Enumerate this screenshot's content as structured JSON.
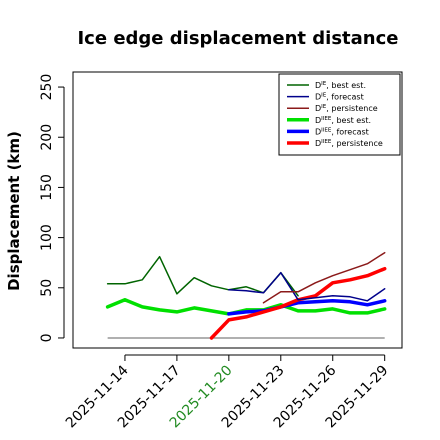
{
  "chart_data": {
    "type": "line",
    "title": "Ice edge displacement distance",
    "xlabel": "",
    "ylabel": "Displacement (km)",
    "ylim": [
      -10,
      265
    ],
    "xlim": [
      "2025-11-11",
      "2025-11-30"
    ],
    "yticks": [
      0,
      50,
      100,
      150,
      200,
      250
    ],
    "xticks": [
      {
        "date": "2025-11-14",
        "label": "2025-11-14",
        "color": "#000000"
      },
      {
        "date": "2025-11-17",
        "label": "2025-11-17",
        "color": "#000000"
      },
      {
        "date": "2025-11-20",
        "label": "2025-11-20",
        "color": "#228B22"
      },
      {
        "date": "2025-11-23",
        "label": "2025-11-23",
        "color": "#000000"
      },
      {
        "date": "2025-11-26",
        "label": "2025-11-26",
        "color": "#000000"
      },
      {
        "date": "2025-11-29",
        "label": "2025-11-29",
        "color": "#000000"
      }
    ],
    "grid": false,
    "legend_position": "top-right",
    "zero_line": {
      "from": "2025-11-13",
      "to": "2025-11-29",
      "value": 0,
      "color": "#808080"
    },
    "series": [
      {
        "name_main": "D",
        "name_sup": "IE",
        "name_rest": ", best est.",
        "color": "#006400",
        "width": 1.5,
        "points": [
          [
            "2025-11-13",
            54
          ],
          [
            "2025-11-14",
            54
          ],
          [
            "2025-11-15",
            58
          ],
          [
            "2025-11-16",
            81
          ],
          [
            "2025-11-17",
            44
          ],
          [
            "2025-11-18",
            60
          ],
          [
            "2025-11-19",
            52
          ],
          [
            "2025-11-20",
            48
          ],
          [
            "2025-11-21",
            51
          ],
          [
            "2025-11-22",
            45
          ],
          [
            "2025-11-23",
            65
          ],
          [
            "2025-11-24",
            42
          ]
        ]
      },
      {
        "name_main": "D",
        "name_sup": "IE",
        "name_rest": ", forecast",
        "color": "#00008B",
        "width": 1.5,
        "points": [
          [
            "2025-11-20",
            48
          ],
          [
            "2025-11-21",
            47
          ],
          [
            "2025-11-22",
            45
          ],
          [
            "2025-11-23",
            65
          ],
          [
            "2025-11-24",
            38
          ],
          [
            "2025-11-25",
            40
          ],
          [
            "2025-11-26",
            42
          ],
          [
            "2025-11-27",
            41
          ],
          [
            "2025-11-28",
            37
          ],
          [
            "2025-11-29",
            49
          ]
        ]
      },
      {
        "name_main": "D",
        "name_sup": "IE",
        "name_rest": ", persistence",
        "color": "#8B1A1A",
        "width": 1.5,
        "points": [
          [
            "2025-11-22",
            35
          ],
          [
            "2025-11-23",
            46
          ],
          [
            "2025-11-24",
            46
          ],
          [
            "2025-11-25",
            55
          ],
          [
            "2025-11-26",
            62
          ],
          [
            "2025-11-27",
            68
          ],
          [
            "2025-11-28",
            74
          ],
          [
            "2025-11-29",
            85
          ]
        ]
      },
      {
        "name_main": "D",
        "name_sup": "IIEE",
        "name_rest": ", best est.",
        "color": "#00E000",
        "width": 3.5,
        "points": [
          [
            "2025-11-13",
            31
          ],
          [
            "2025-11-14",
            38
          ],
          [
            "2025-11-15",
            31
          ],
          [
            "2025-11-16",
            28
          ],
          [
            "2025-11-17",
            26
          ],
          [
            "2025-11-18",
            30
          ],
          [
            "2025-11-19",
            27
          ],
          [
            "2025-11-20",
            24
          ],
          [
            "2025-11-21",
            28
          ],
          [
            "2025-11-22",
            28
          ],
          [
            "2025-11-23",
            33
          ],
          [
            "2025-11-24",
            27
          ],
          [
            "2025-11-25",
            27
          ],
          [
            "2025-11-26",
            29
          ],
          [
            "2025-11-27",
            25
          ],
          [
            "2025-11-28",
            25
          ],
          [
            "2025-11-29",
            29
          ]
        ]
      },
      {
        "name_main": "D",
        "name_sup": "IIEE",
        "name_rest": ", forecast",
        "color": "#0000FF",
        "width": 3.5,
        "points": [
          [
            "2025-11-20",
            24
          ],
          [
            "2025-11-21",
            26
          ],
          [
            "2025-11-22",
            27
          ],
          [
            "2025-11-23",
            31
          ],
          [
            "2025-11-24",
            35
          ],
          [
            "2025-11-25",
            36
          ],
          [
            "2025-11-26",
            37
          ],
          [
            "2025-11-27",
            36
          ],
          [
            "2025-11-28",
            33
          ],
          [
            "2025-11-29",
            37
          ]
        ]
      },
      {
        "name_main": "D",
        "name_sup": "IIEE",
        "name_rest": ", persistence",
        "color": "#FF0000",
        "width": 3.5,
        "points": [
          [
            "2025-11-19",
            0
          ],
          [
            "2025-11-20",
            18
          ],
          [
            "2025-11-21",
            21
          ],
          [
            "2025-11-22",
            26
          ],
          [
            "2025-11-23",
            31
          ],
          [
            "2025-11-24",
            38
          ],
          [
            "2025-11-25",
            42
          ],
          [
            "2025-11-26",
            55
          ],
          [
            "2025-11-27",
            58
          ],
          [
            "2025-11-28",
            62
          ],
          [
            "2025-11-29",
            69
          ]
        ]
      }
    ]
  }
}
